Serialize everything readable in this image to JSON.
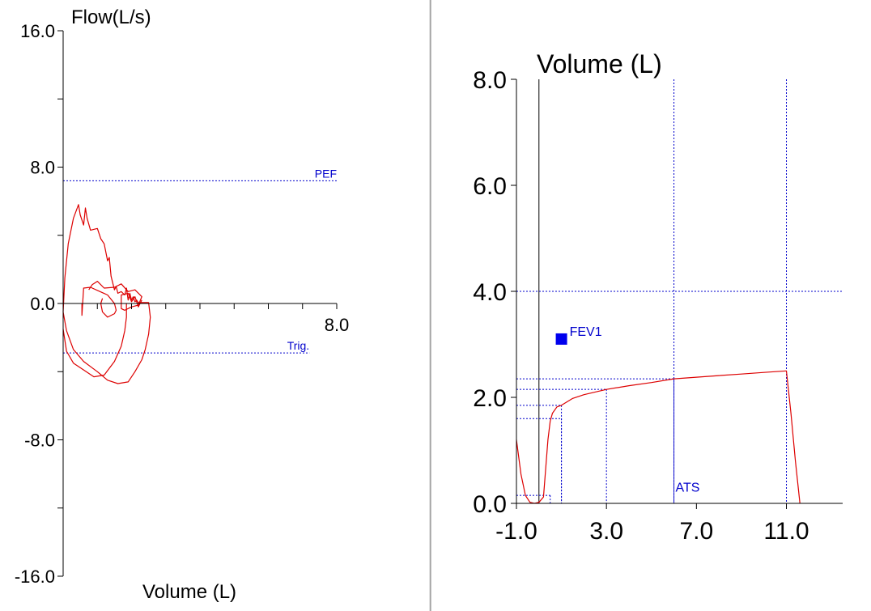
{
  "colors": {
    "background": "#ffffff",
    "axis": "#000000",
    "reference": "#0000cc",
    "curve": "#dd0000",
    "fev1_marker": "#0000ee",
    "divider_light": "#c8c8c8",
    "divider_dark": "#808080"
  },
  "chart_data": [
    {
      "type": "line",
      "title": "",
      "ylabel": "Flow(L/s)",
      "xlabel": "Volume (L)",
      "xlim": [
        0,
        8
      ],
      "ylim": [
        -16,
        16
      ],
      "grid": false,
      "y_ticks": [
        16,
        12,
        8,
        4,
        0,
        -4,
        -8,
        -12,
        -16
      ],
      "y_tick_labels": [
        {
          "value": 16,
          "text": "16.0"
        },
        {
          "value": 8,
          "text": "8.0"
        },
        {
          "value": 0,
          "text": "0.0"
        },
        {
          "value": -8,
          "text": "-8.0"
        },
        {
          "value": -16,
          "text": "-16.0"
        }
      ],
      "x_ticks": [
        0,
        1,
        2,
        3,
        4,
        5,
        6,
        7,
        8
      ],
      "x_tick_labels": [
        {
          "value": 8,
          "text": "8.0"
        }
      ],
      "reference_lines": [
        {
          "label": "PEF",
          "y": 7.2,
          "x_end": 8.0
        },
        {
          "label": "Trig.",
          "y": -2.9,
          "x_end": 7.2
        }
      ],
      "series": [
        {
          "x": [
            0.0,
            0.05,
            0.15,
            0.3,
            0.45,
            0.5,
            0.6,
            0.65,
            0.7,
            0.8,
            1.0,
            1.1,
            1.2,
            1.3,
            1.35,
            1.4,
            1.45,
            1.5,
            1.55,
            1.6,
            1.7,
            1.8,
            1.85,
            1.9,
            1.95,
            2.0,
            2.05,
            2.1,
            2.15,
            2.2,
            2.3,
            2.4,
            2.5,
            2.55,
            2.5,
            2.4,
            2.3,
            2.1,
            1.9,
            1.6,
            1.3,
            1.0,
            0.6,
            0.3,
            0.1,
            0.0
          ],
          "y": [
            -0.5,
            1.5,
            3.5,
            5.0,
            5.8,
            5.2,
            4.6,
            5.6,
            5.0,
            4.3,
            4.4,
            3.8,
            3.5,
            2.5,
            2.7,
            1.6,
            1.2,
            0.8,
            1.0,
            0.6,
            0.7,
            0.5,
            0.9,
            0.2,
            0.6,
            0.2,
            0.4,
            0.1,
            0.2,
            0.05,
            0.05,
            0.05,
            0.05,
            -0.8,
            -1.8,
            -2.7,
            -3.3,
            -4.0,
            -4.6,
            -4.7,
            -4.5,
            -4.0,
            -3.4,
            -2.7,
            -1.6,
            -0.5
          ]
        },
        {
          "x": [
            0.0,
            0.1,
            0.3,
            0.6,
            0.9,
            1.2,
            1.5,
            1.7,
            1.8,
            1.85,
            1.85
          ],
          "y": [
            -1.5,
            -2.8,
            -3.5,
            -3.9,
            -4.3,
            -4.2,
            -3.4,
            -2.5,
            -1.6,
            -0.8,
            0.0
          ]
        },
        {
          "x": [
            0.75,
            0.85,
            1.0,
            1.2,
            1.5,
            1.7,
            1.9,
            2.1,
            2.3,
            2.2,
            2.0,
            1.8,
            1.7,
            1.7,
            1.9,
            2.0,
            2.1,
            2.2,
            2.3
          ],
          "y": [
            0.8,
            1.1,
            1.3,
            0.9,
            0.95,
            1.15,
            0.7,
            0.8,
            0.4,
            -0.1,
            -0.2,
            -0.4,
            -0.3,
            0.5,
            0.6,
            0.1,
            0.4,
            -0.2,
            0.2
          ]
        },
        {
          "x": [
            0.55,
            0.55,
            0.6,
            0.8,
            1.3,
            1.5,
            1.55,
            1.5,
            1.3,
            1.15,
            1.1,
            1.15
          ],
          "y": [
            0.0,
            -0.7,
            0.9,
            0.95,
            0.5,
            0.0,
            -0.4,
            -0.6,
            -0.8,
            -0.5,
            0.0,
            0.3
          ]
        }
      ]
    },
    {
      "type": "line",
      "title": "",
      "ylabel": "Volume (L)",
      "xlabel": "",
      "xlim": [
        -1,
        13.5
      ],
      "ylim": [
        0,
        8
      ],
      "grid": false,
      "y_ticks": [
        0,
        2,
        4,
        6,
        8
      ],
      "y_tick_labels": [
        {
          "value": 8,
          "text": "8.0"
        },
        {
          "value": 6,
          "text": "6.0"
        },
        {
          "value": 4,
          "text": "4.0"
        },
        {
          "value": 2,
          "text": "2.0"
        },
        {
          "value": 0,
          "text": "0.0"
        }
      ],
      "x_ticks": [
        -1,
        3,
        7,
        11
      ],
      "x_tick_labels": [
        {
          "value": -1,
          "text": "-1.0"
        },
        {
          "value": 3,
          "text": "3.0"
        },
        {
          "value": 7,
          "text": "7.0"
        },
        {
          "value": 11,
          "text": "11.0"
        }
      ],
      "zero_line_x": 0,
      "vlines": [
        6,
        11
      ],
      "hlines": [
        {
          "y": 4.0,
          "x_from": -1,
          "x_to": 13.5
        }
      ],
      "time_lines": [
        {
          "x": 0.5,
          "y": 0.15
        },
        {
          "x": 1.0,
          "y": 1.6
        },
        {
          "x": 1.0,
          "y": 1.85
        },
        {
          "x": 3.0,
          "y": 2.15
        },
        {
          "x": 6.0,
          "y": 2.35
        }
      ],
      "annotations": [
        {
          "text": "ATS",
          "x": 6.0,
          "y": 0.1
        }
      ],
      "markers": [
        {
          "label": "FEV1",
          "x": 1.0,
          "y": 3.1
        }
      ],
      "series": [
        {
          "x": [
            -1.0,
            -0.8,
            -0.6,
            -0.4,
            -0.2,
            0.0,
            0.2,
            0.4,
            0.5,
            0.6,
            0.8,
            1.0,
            1.5,
            2.0,
            3.0,
            4.0,
            5.0,
            6.0,
            7.0,
            8.0,
            9.0,
            10.0,
            11.0,
            11.2,
            11.4,
            11.6
          ],
          "y": [
            1.2,
            0.55,
            0.15,
            0.02,
            0.0,
            0.02,
            0.12,
            1.2,
            1.55,
            1.7,
            1.82,
            1.85,
            1.98,
            2.05,
            2.15,
            2.22,
            2.28,
            2.35,
            2.38,
            2.41,
            2.44,
            2.47,
            2.5,
            1.7,
            0.8,
            0.0
          ]
        }
      ]
    }
  ]
}
